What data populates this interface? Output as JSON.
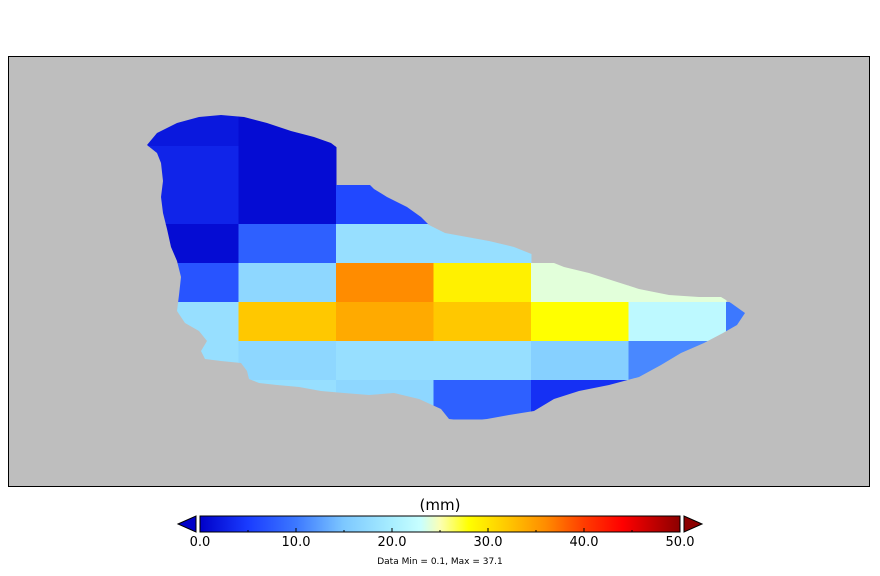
{
  "map": {
    "background_color": "#bebebe",
    "island_name": "",
    "grid_values_mm": [
      [
        2,
        1,
        null,
        null,
        null,
        null,
        null
      ],
      [
        3,
        1,
        null,
        null,
        null,
        null,
        null
      ],
      [
        3,
        1,
        6,
        null,
        null,
        null,
        null
      ],
      [
        1,
        8,
        18,
        18,
        null,
        null,
        null
      ],
      [
        7,
        17,
        36,
        29,
        24,
        24,
        null
      ],
      [
        18,
        32,
        34,
        32,
        28,
        22,
        10
      ],
      [
        18,
        17,
        18,
        18,
        16,
        11,
        null
      ],
      [
        null,
        18,
        17,
        8,
        4,
        null,
        null
      ]
    ]
  },
  "colorbar": {
    "unit_label": "(mm)",
    "min": 0,
    "max": 50,
    "ticks": [
      "0.0",
      "10.0",
      "20.0",
      "30.0",
      "40.0",
      "50.0"
    ],
    "colormap": [
      [
        0,
        "#0000c8"
      ],
      [
        5,
        "#1a3cff"
      ],
      [
        10,
        "#3c78ff"
      ],
      [
        15,
        "#7dc8ff"
      ],
      [
        20,
        "#a8eeff"
      ],
      [
        23,
        "#c8ffff"
      ],
      [
        25,
        "#fbffb4"
      ],
      [
        28,
        "#ffff00"
      ],
      [
        32,
        "#ffc800"
      ],
      [
        36,
        "#ff8c00"
      ],
      [
        40,
        "#ff3c00"
      ],
      [
        44,
        "#ff0000"
      ],
      [
        50,
        "#8c0000"
      ]
    ],
    "under_color": "#0000c8",
    "over_color": "#8c0000"
  },
  "footer": {
    "data_range": "Data Min = 0.1, Max = 37.1"
  }
}
